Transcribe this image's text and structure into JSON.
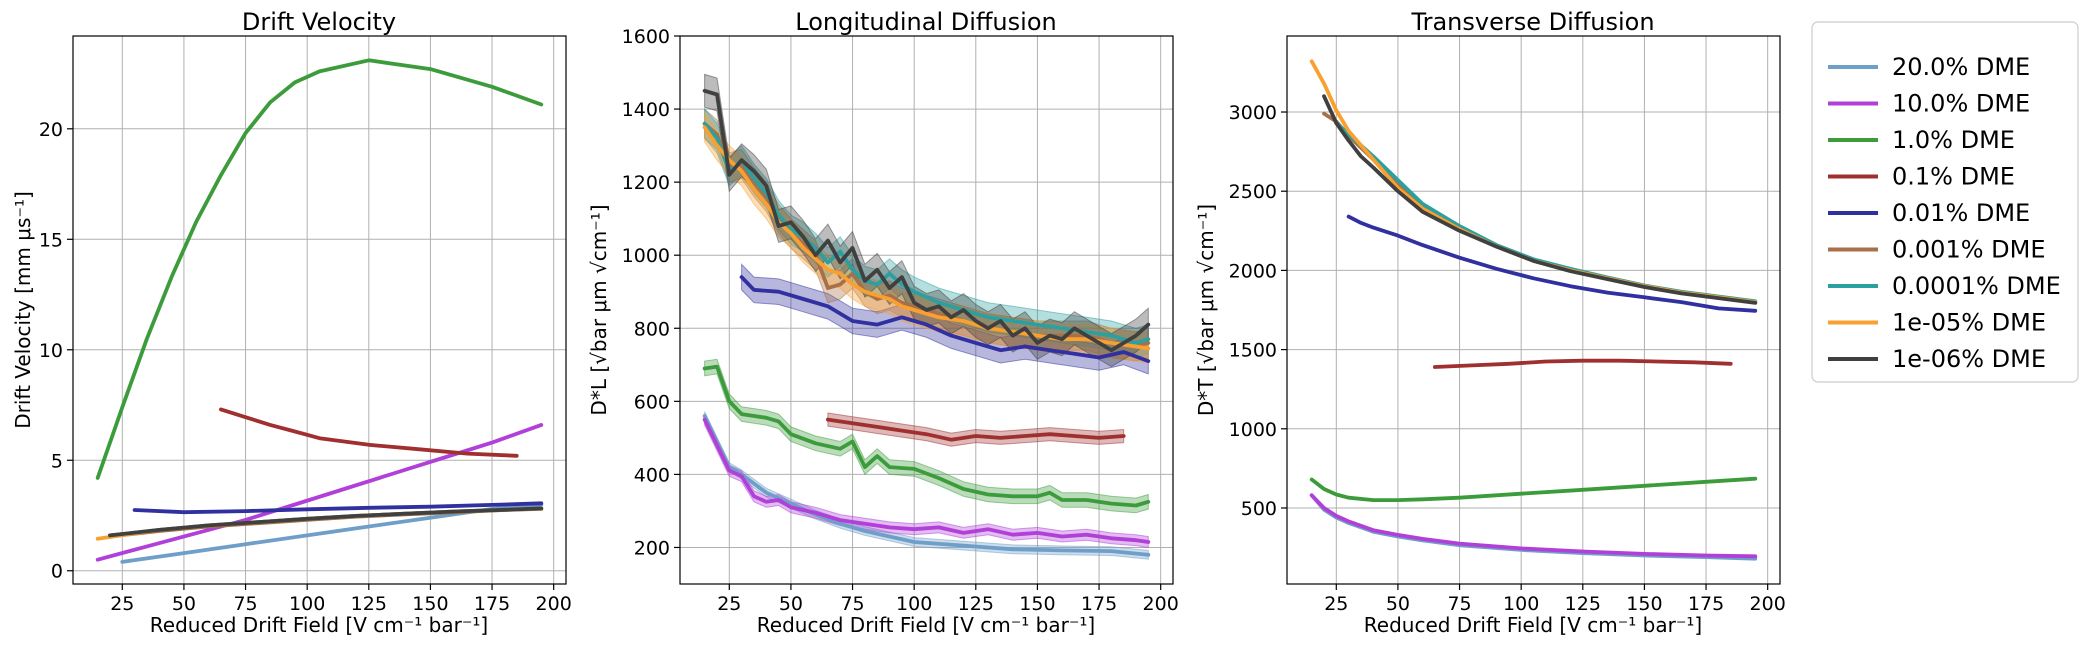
{
  "legend": {
    "entries": [
      {
        "name": "20.0% DME",
        "color": "#6f9fc8"
      },
      {
        "name": "10.0% DME",
        "color": "#b040d8"
      },
      {
        "name": "1.0% DME",
        "color": "#3c9c3c"
      },
      {
        "name": "0.1% DME",
        "color": "#a03030"
      },
      {
        "name": "0.01% DME",
        "color": "#3030a0"
      },
      {
        "name": "0.001% DME",
        "color": "#a87048"
      },
      {
        "name": "0.0001% DME",
        "color": "#2ca0a0"
      },
      {
        "name": "1e-05% DME",
        "color": "#f8a030"
      },
      {
        "name": "1e-06% DME",
        "color": "#404040"
      }
    ]
  },
  "chart_data": [
    {
      "type": "line",
      "title": "Drift Velocity",
      "xlabel": "Reduced Drift Field [V cm⁻¹ bar⁻¹]",
      "ylabel": "Drift Velocity [mm μs⁻¹]",
      "xlim": [
        5,
        205
      ],
      "ylim": [
        -0.6,
        24.2
      ],
      "xticks": [
        25,
        50,
        75,
        100,
        125,
        150,
        175,
        200
      ],
      "yticks": [
        0,
        5,
        10,
        15,
        20
      ],
      "grid": true,
      "series": [
        {
          "name": "20.0% DME",
          "x": [
            25,
            50,
            75,
            100,
            125,
            150,
            175,
            195
          ],
          "y": [
            0.4,
            0.8,
            1.2,
            1.6,
            2.0,
            2.4,
            2.8,
            3.0
          ]
        },
        {
          "name": "10.0% DME",
          "x": [
            15,
            35,
            55,
            75,
            95,
            115,
            135,
            155,
            175,
            195
          ],
          "y": [
            0.5,
            1.1,
            1.7,
            2.3,
            3.0,
            3.7,
            4.4,
            5.1,
            5.8,
            6.6
          ]
        },
        {
          "name": "1.0% DME",
          "x": [
            15,
            25,
            35,
            45,
            55,
            65,
            75,
            85,
            95,
            105,
            125,
            150,
            175,
            195
          ],
          "y": [
            4.2,
            7.4,
            10.5,
            13.3,
            15.8,
            17.9,
            19.8,
            21.2,
            22.1,
            22.6,
            23.1,
            22.7,
            21.9,
            21.1
          ]
        },
        {
          "name": "0.1% DME",
          "x": [
            65,
            75,
            85,
            95,
            105,
            125,
            145,
            165,
            185
          ],
          "y": [
            7.3,
            6.95,
            6.6,
            6.3,
            6.0,
            5.7,
            5.5,
            5.3,
            5.2
          ]
        },
        {
          "name": "0.01% DME",
          "x": [
            30,
            50,
            75,
            100,
            125,
            150,
            175,
            195
          ],
          "y": [
            2.75,
            2.65,
            2.7,
            2.78,
            2.85,
            2.9,
            2.98,
            3.05
          ]
        },
        {
          "name": "0.001% DME",
          "x": [
            20,
            40,
            60,
            80,
            100,
            120,
            140,
            160,
            180,
            195
          ],
          "y": [
            1.55,
            1.8,
            2.0,
            2.15,
            2.3,
            2.45,
            2.55,
            2.65,
            2.75,
            2.8
          ]
        },
        {
          "name": "0.0001% DME",
          "x": [
            20,
            40,
            60,
            80,
            100,
            120,
            140,
            160,
            180,
            195
          ],
          "y": [
            1.6,
            1.85,
            2.05,
            2.2,
            2.35,
            2.48,
            2.58,
            2.68,
            2.76,
            2.82
          ]
        },
        {
          "name": "1e-05% DME",
          "x": [
            15,
            40,
            60,
            80,
            100,
            120,
            140,
            160,
            180,
            195
          ],
          "y": [
            1.45,
            1.85,
            2.05,
            2.2,
            2.35,
            2.48,
            2.58,
            2.68,
            2.76,
            2.82
          ]
        },
        {
          "name": "1e-06% DME",
          "x": [
            20,
            40,
            60,
            80,
            100,
            120,
            140,
            160,
            180,
            195
          ],
          "y": [
            1.6,
            1.85,
            2.05,
            2.2,
            2.35,
            2.48,
            2.58,
            2.68,
            2.76,
            2.82
          ]
        }
      ]
    },
    {
      "type": "line",
      "title": "Longitudinal Diffusion",
      "xlabel": "Reduced Drift Field [V cm⁻¹ bar⁻¹]",
      "ylabel": "D*L [√bar μm √cm⁻¹]",
      "xlim": [
        5,
        205
      ],
      "ylim": [
        100,
        1600
      ],
      "xticks": [
        25,
        50,
        75,
        100,
        125,
        150,
        175,
        200
      ],
      "yticks": [
        200,
        400,
        600,
        800,
        1000,
        1200,
        1400,
        1600
      ],
      "grid": true,
      "series": [
        {
          "name": "20.0% DME",
          "x": [
            15,
            25,
            30,
            40,
            50,
            60,
            70,
            80,
            90,
            100,
            120,
            140,
            160,
            180,
            195
          ],
          "y": [
            560,
            420,
            400,
            350,
            320,
            290,
            265,
            245,
            230,
            215,
            205,
            195,
            192,
            190,
            180
          ],
          "band": 12
        },
        {
          "name": "10.0% DME",
          "x": [
            15,
            25,
            30,
            35,
            40,
            45,
            50,
            60,
            70,
            80,
            90,
            100,
            110,
            120,
            130,
            140,
            150,
            160,
            170,
            180,
            190,
            195
          ],
          "y": [
            550,
            410,
            395,
            340,
            325,
            330,
            310,
            295,
            275,
            265,
            255,
            250,
            255,
            240,
            250,
            235,
            240,
            230,
            235,
            225,
            220,
            215
          ],
          "band": 15
        },
        {
          "name": "1.0% DME",
          "x": [
            15,
            20,
            25,
            30,
            40,
            45,
            50,
            60,
            70,
            75,
            80,
            85,
            90,
            100,
            110,
            120,
            130,
            140,
            150,
            155,
            160,
            170,
            180,
            190,
            195
          ],
          "y": [
            690,
            695,
            600,
            565,
            555,
            545,
            510,
            485,
            470,
            490,
            420,
            450,
            420,
            415,
            390,
            360,
            345,
            340,
            340,
            350,
            330,
            330,
            320,
            315,
            325
          ],
          "band": 20
        },
        {
          "name": "0.1% DME",
          "x": [
            65,
            75,
            85,
            95,
            105,
            115,
            125,
            135,
            145,
            155,
            165,
            175,
            185
          ],
          "y": [
            550,
            540,
            530,
            520,
            510,
            495,
            505,
            500,
            505,
            510,
            505,
            500,
            505
          ],
          "band": 18
        },
        {
          "name": "0.01% DME",
          "x": [
            30,
            35,
            45,
            55,
            65,
            75,
            85,
            95,
            105,
            115,
            125,
            135,
            145,
            155,
            165,
            175,
            185,
            195
          ],
          "y": [
            940,
            905,
            900,
            880,
            860,
            820,
            810,
            830,
            810,
            780,
            760,
            740,
            750,
            740,
            730,
            720,
            735,
            710
          ],
          "band": 35
        },
        {
          "name": "0.001% DME",
          "x": [
            15,
            20,
            25,
            30,
            35,
            40,
            45,
            50,
            55,
            60,
            65,
            70,
            75,
            80,
            85,
            90,
            95,
            100,
            110,
            120,
            130,
            140,
            150,
            160,
            170,
            180,
            190,
            195
          ],
          "y": [
            1360,
            1330,
            1240,
            1250,
            1200,
            1160,
            1100,
            1060,
            1030,
            1000,
            910,
            920,
            950,
            900,
            880,
            890,
            870,
            860,
            840,
            820,
            800,
            790,
            780,
            780,
            780,
            760,
            750,
            760
          ],
          "band": 40
        },
        {
          "name": "0.0001% DME",
          "x": [
            15,
            20,
            25,
            30,
            35,
            40,
            45,
            50,
            55,
            60,
            65,
            70,
            75,
            80,
            85,
            90,
            95,
            100,
            110,
            120,
            130,
            140,
            150,
            160,
            170,
            180,
            190,
            195
          ],
          "y": [
            1360,
            1320,
            1230,
            1260,
            1210,
            1170,
            1110,
            1070,
            1050,
            1020,
            980,
            1010,
            960,
            930,
            920,
            950,
            920,
            900,
            870,
            850,
            830,
            820,
            810,
            800,
            790,
            780,
            760,
            770
          ],
          "band": 40
        },
        {
          "name": "1e-05% DME",
          "x": [
            15,
            20,
            25,
            30,
            35,
            40,
            45,
            50,
            55,
            60,
            65,
            70,
            75,
            80,
            85,
            90,
            95,
            100,
            110,
            120,
            130,
            140,
            150,
            160,
            170,
            180,
            190,
            195
          ],
          "y": [
            1350,
            1300,
            1260,
            1230,
            1180,
            1140,
            1090,
            1060,
            1020,
            990,
            960,
            950,
            920,
            900,
            890,
            880,
            860,
            850,
            830,
            820,
            800,
            790,
            780,
            770,
            770,
            760,
            750,
            745
          ],
          "band": 40
        },
        {
          "name": "1e-06% DME",
          "x": [
            15,
            20,
            25,
            30,
            35,
            40,
            45,
            50,
            55,
            60,
            65,
            70,
            75,
            80,
            85,
            90,
            95,
            100,
            105,
            110,
            115,
            120,
            125,
            130,
            135,
            140,
            145,
            150,
            155,
            160,
            165,
            170,
            175,
            180,
            185,
            190,
            195
          ],
          "y": [
            1450,
            1440,
            1220,
            1260,
            1230,
            1190,
            1080,
            1090,
            1050,
            1000,
            1040,
            980,
            1020,
            930,
            960,
            910,
            940,
            870,
            850,
            860,
            830,
            850,
            820,
            800,
            820,
            780,
            800,
            760,
            780,
            770,
            800,
            780,
            760,
            740,
            760,
            780,
            810
          ],
          "band": 45
        }
      ]
    },
    {
      "type": "line",
      "title": "Transverse Diffusion",
      "xlabel": "Reduced Drift Field [V cm⁻¹ bar⁻¹]",
      "ylabel": "D*T [√bar μm √cm⁻¹]",
      "xlim": [
        5,
        205
      ],
      "ylim": [
        20,
        3480
      ],
      "xticks": [
        25,
        50,
        75,
        100,
        125,
        150,
        175,
        200
      ],
      "yticks": [
        500,
        1000,
        1500,
        2000,
        2500,
        3000
      ],
      "grid": true,
      "series": [
        {
          "name": "20.0% DME",
          "x": [
            15,
            20,
            25,
            30,
            40,
            50,
            60,
            75,
            100,
            125,
            150,
            175,
            195
          ],
          "y": [
            580,
            490,
            440,
            405,
            350,
            320,
            295,
            265,
            235,
            215,
            200,
            190,
            180
          ]
        },
        {
          "name": "10.0% DME",
          "x": [
            15,
            20,
            25,
            30,
            40,
            50,
            60,
            75,
            100,
            125,
            150,
            175,
            195
          ],
          "y": [
            580,
            500,
            450,
            415,
            360,
            330,
            305,
            275,
            245,
            225,
            210,
            200,
            195
          ]
        },
        {
          "name": "1.0% DME",
          "x": [
            15,
            20,
            25,
            30,
            40,
            50,
            60,
            75,
            100,
            125,
            150,
            175,
            195
          ],
          "y": [
            680,
            620,
            585,
            565,
            550,
            550,
            555,
            565,
            590,
            615,
            640,
            665,
            685
          ]
        },
        {
          "name": "0.1% DME",
          "x": [
            65,
            80,
            95,
            110,
            125,
            140,
            155,
            170,
            185
          ],
          "y": [
            1390,
            1400,
            1410,
            1425,
            1430,
            1430,
            1425,
            1420,
            1410
          ]
        },
        {
          "name": "0.01% DME",
          "x": [
            30,
            35,
            40,
            50,
            60,
            75,
            90,
            105,
            120,
            135,
            150,
            165,
            180,
            195
          ],
          "y": [
            2340,
            2300,
            2270,
            2220,
            2160,
            2080,
            2010,
            1950,
            1900,
            1860,
            1830,
            1800,
            1760,
            1745
          ]
        },
        {
          "name": "0.001% DME",
          "x": [
            20,
            25,
            30,
            40,
            50,
            60,
            75,
            90,
            105,
            120,
            135,
            150,
            165,
            180,
            195
          ],
          "y": [
            2990,
            2940,
            2850,
            2700,
            2540,
            2400,
            2260,
            2150,
            2060,
            2000,
            1950,
            1900,
            1860,
            1830,
            1800
          ]
        },
        {
          "name": "0.0001% DME",
          "x": [
            25,
            30,
            40,
            50,
            60,
            75,
            90,
            105,
            120,
            135,
            150,
            165,
            180,
            195
          ],
          "y": [
            2930,
            2860,
            2720,
            2570,
            2420,
            2280,
            2160,
            2070,
            2010,
            1955,
            1905,
            1865,
            1835,
            1805
          ]
        },
        {
          "name": "1e-05% DME",
          "x": [
            15,
            20,
            25,
            30,
            40,
            50,
            60,
            75,
            90,
            105,
            120,
            135,
            150,
            165,
            180,
            195
          ],
          "y": [
            3320,
            3180,
            3010,
            2880,
            2700,
            2520,
            2390,
            2260,
            2150,
            2060,
            2000,
            1950,
            1900,
            1860,
            1830,
            1800
          ]
        },
        {
          "name": "1e-06% DME",
          "x": [
            20,
            25,
            30,
            35,
            40,
            50,
            60,
            75,
            90,
            105,
            120,
            135,
            150,
            165,
            180,
            195
          ],
          "y": [
            3100,
            2930,
            2820,
            2720,
            2650,
            2500,
            2370,
            2250,
            2150,
            2060,
            1995,
            1945,
            1895,
            1855,
            1825,
            1795
          ]
        }
      ]
    }
  ]
}
